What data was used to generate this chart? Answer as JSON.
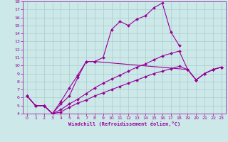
{
  "xlabel": "Windchill (Refroidissement éolien,°C)",
  "bg_color": "#cce8e8",
  "line_color": "#990099",
  "grid_color": "#aacccc",
  "xlim": [
    -0.5,
    23.5
  ],
  "ylim": [
    4,
    18
  ],
  "xticks": [
    0,
    1,
    2,
    3,
    4,
    5,
    6,
    7,
    8,
    9,
    10,
    11,
    12,
    13,
    14,
    15,
    16,
    17,
    18,
    19,
    20,
    21,
    22,
    23
  ],
  "yticks": [
    4,
    5,
    6,
    7,
    8,
    9,
    10,
    11,
    12,
    13,
    14,
    15,
    16,
    17,
    18
  ],
  "series": [
    {
      "x": [
        0,
        1,
        2,
        3,
        4,
        5,
        6,
        7,
        8,
        19,
        20,
        21,
        22,
        23
      ],
      "y": [
        6.2,
        5.0,
        5.0,
        4.0,
        5.2,
        6.2,
        8.5,
        10.5,
        10.5,
        9.5,
        8.2,
        9.0,
        9.5,
        9.8
      ]
    },
    {
      "x": [
        0,
        1,
        2,
        3,
        4,
        5,
        6,
        7,
        8,
        9,
        10,
        11,
        12,
        13,
        14,
        15,
        16,
        17,
        18
      ],
      "y": [
        6.2,
        5.0,
        5.0,
        4.0,
        5.5,
        7.2,
        8.8,
        10.5,
        10.5,
        11.0,
        14.5,
        15.5,
        15.0,
        15.8,
        16.2,
        17.2,
        17.8,
        14.2,
        12.5
      ]
    },
    {
      "x": [
        0,
        1,
        2,
        3,
        4,
        5,
        6,
        7,
        8,
        9,
        10,
        11,
        12,
        13,
        14,
        15,
        16,
        17,
        18,
        19,
        20,
        21,
        22,
        23
      ],
      "y": [
        6.2,
        5.0,
        5.0,
        4.0,
        4.5,
        5.2,
        5.8,
        6.5,
        7.2,
        7.8,
        8.3,
        8.8,
        9.3,
        9.8,
        10.2,
        10.7,
        11.2,
        11.5,
        11.8,
        9.5,
        8.2,
        9.0,
        9.5,
        9.8
      ]
    },
    {
      "x": [
        0,
        1,
        2,
        3,
        4,
        5,
        6,
        7,
        8,
        9,
        10,
        11,
        12,
        13,
        14,
        15,
        16,
        17,
        18,
        19,
        20,
        21,
        22,
        23
      ],
      "y": [
        6.2,
        5.0,
        5.0,
        4.0,
        4.2,
        4.8,
        5.3,
        5.7,
        6.2,
        6.6,
        7.0,
        7.4,
        7.8,
        8.2,
        8.6,
        9.0,
        9.3,
        9.6,
        9.9,
        9.5,
        8.2,
        9.0,
        9.5,
        9.8
      ]
    }
  ]
}
